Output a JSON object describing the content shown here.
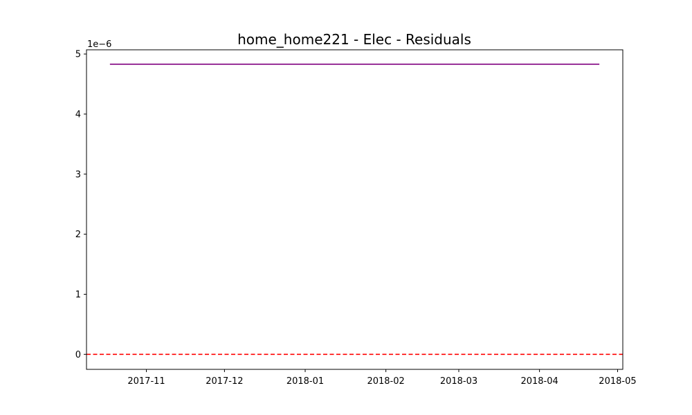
{
  "chart_data": {
    "type": "line",
    "title": "home_home221 - Elec - Residuals",
    "xlabel": "",
    "ylabel": "",
    "y_offset_label": "1e−6",
    "x_range": [
      "2017-10-09",
      "2018-05-03"
    ],
    "ylim": [
      -0.25,
      5.07
    ],
    "x_ticks": [
      {
        "date": "2017-11-01",
        "label": "2017-11"
      },
      {
        "date": "2017-12-01",
        "label": "2017-12"
      },
      {
        "date": "2018-01-01",
        "label": "2018-01"
      },
      {
        "date": "2018-02-01",
        "label": "2018-02"
      },
      {
        "date": "2018-03-01",
        "label": "2018-03"
      },
      {
        "date": "2018-04-01",
        "label": "2018-04"
      },
      {
        "date": "2018-05-01",
        "label": "2018-05"
      }
    ],
    "y_ticks": [
      {
        "value": 0,
        "label": "0"
      },
      {
        "value": 1,
        "label": "1"
      },
      {
        "value": 2,
        "label": "2"
      },
      {
        "value": 3,
        "label": "3"
      },
      {
        "value": 4,
        "label": "4"
      },
      {
        "value": 5,
        "label": "5"
      }
    ],
    "series": [
      {
        "color": "#800080",
        "points": [
          {
            "x": "2017-10-18",
            "y": 4.83
          },
          {
            "x": "2018-04-24",
            "y": 4.83
          }
        ]
      }
    ],
    "reference_line": {
      "y": 0,
      "color": "#ff0000",
      "style": "dashed"
    },
    "grid": false,
    "legend": "none"
  }
}
